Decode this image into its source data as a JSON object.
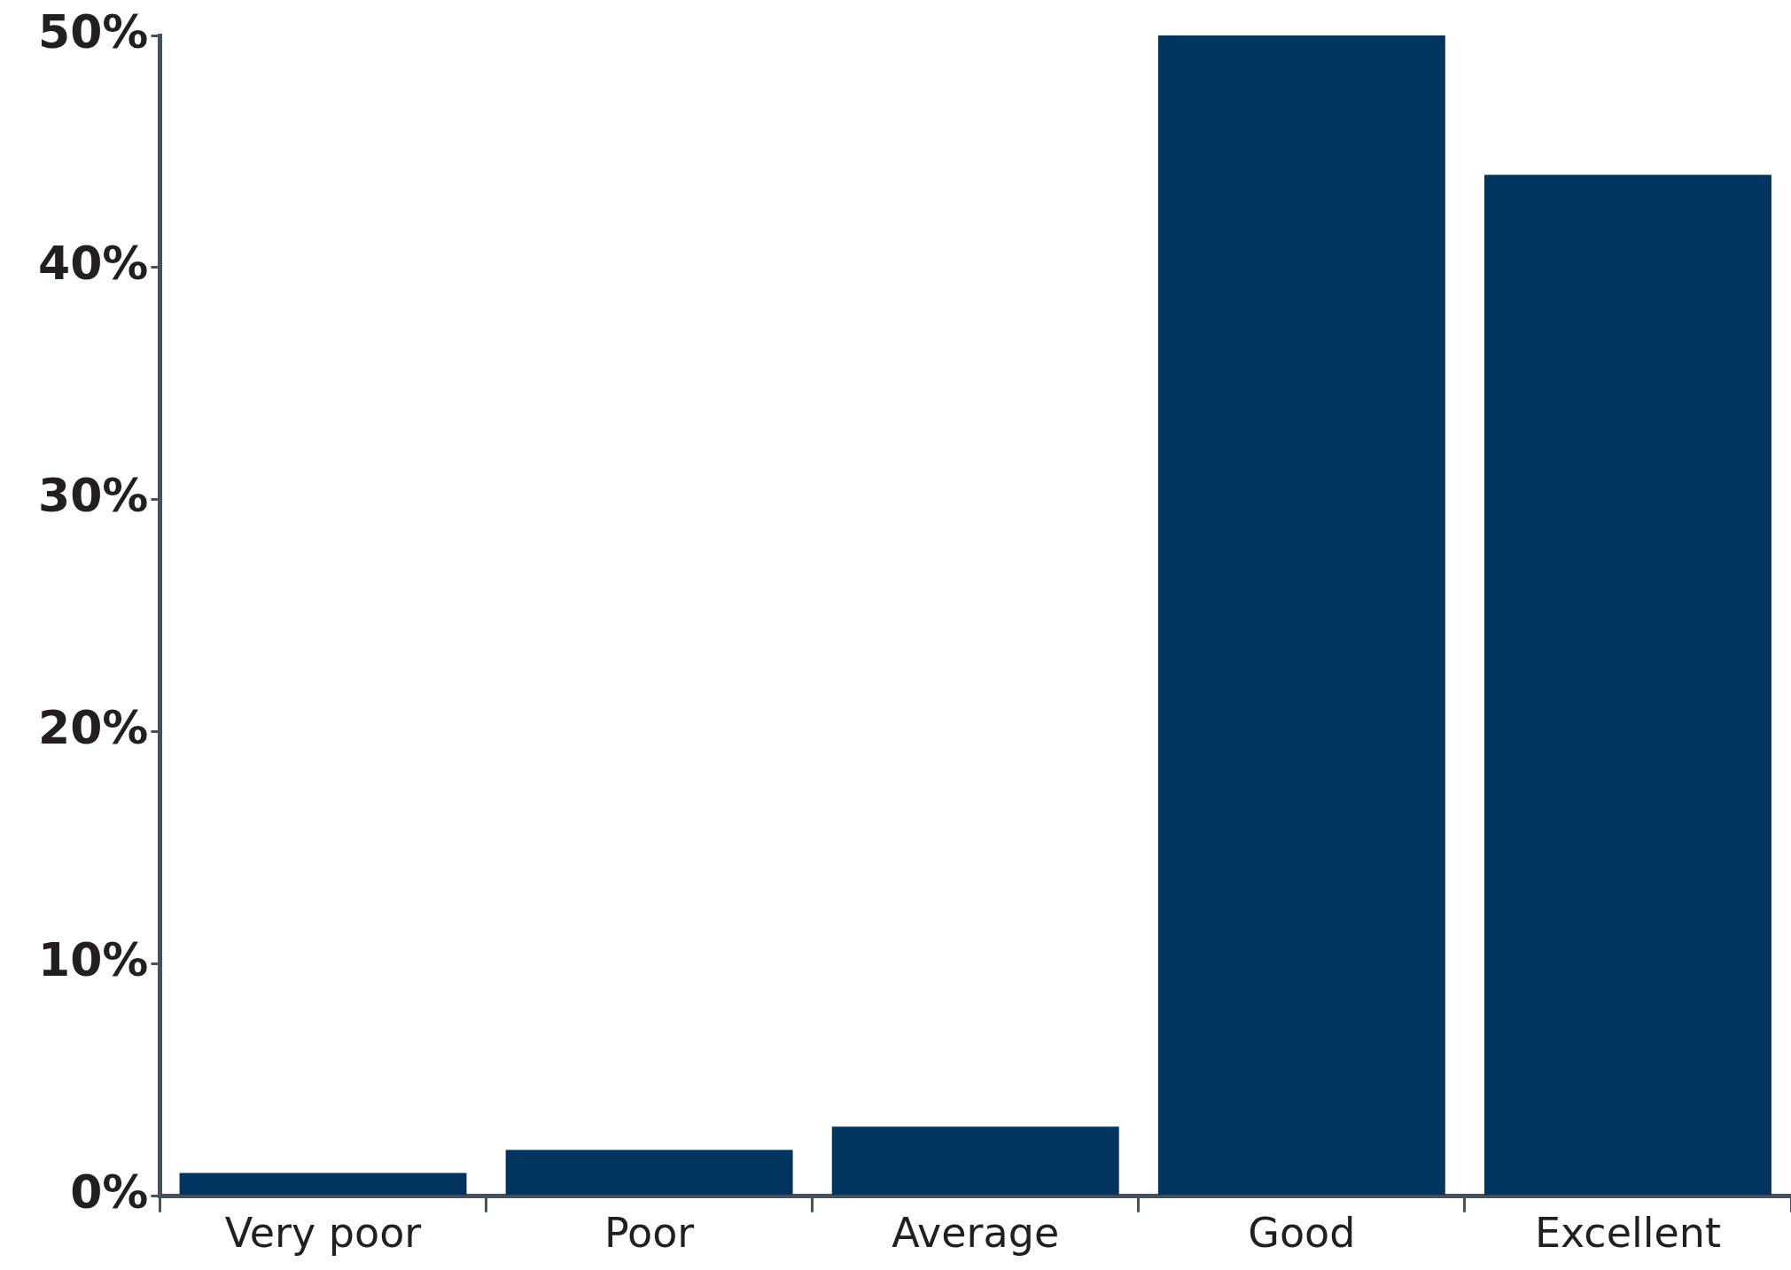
{
  "chart_data": {
    "type": "bar",
    "categories": [
      "Very poor",
      "Poor",
      "Average",
      "Good",
      "Excellent"
    ],
    "values": [
      1,
      2,
      3,
      50,
      44
    ],
    "color": "#01355f",
    "ylim": [
      0,
      50
    ],
    "yticks": [
      {
        "value": 0,
        "label": "0%"
      },
      {
        "value": 10,
        "label": "10%"
      },
      {
        "value": 20,
        "label": "20%"
      },
      {
        "value": 30,
        "label": "30%"
      },
      {
        "value": 40,
        "label": "40%"
      },
      {
        "value": 50,
        "label": "50%"
      }
    ],
    "grid": false,
    "legend": false
  }
}
